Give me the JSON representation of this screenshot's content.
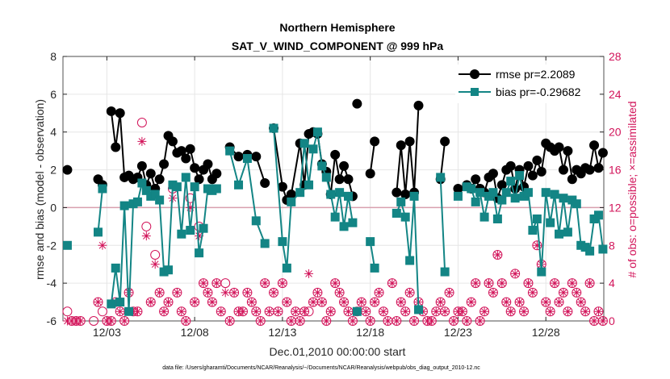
{
  "chart_data": {
    "type": "line",
    "title": "Northern Hemisphere",
    "subtitle": "SAT_V_WIND_COMPONENT @ 999 hPa",
    "xlabel": "Dec.01,2010 00:00:00 start",
    "ylabel": "rmse and bias (model - observation)",
    "y2label": "# of obs: o=possible; ×=assimilated",
    "footer": "data file: /Users/gharamti/Documents/NCAR/Reanalysis/~/Documents/NCAR/Reanalysis/webpub/obs_diag_output_2010-12.nc",
    "xlim": [
      0.5,
      31.3
    ],
    "ylim": [
      -6,
      8
    ],
    "y2lim": [
      0,
      28
    ],
    "xticks": [
      3,
      8,
      13,
      18,
      23,
      28
    ],
    "xtick_labels": [
      "12/03",
      "12/08",
      "12/13",
      "12/18",
      "12/23",
      "12/28"
    ],
    "yticks": [
      -6,
      -4,
      -2,
      0,
      2,
      4,
      6,
      8
    ],
    "y2ticks": [
      0,
      4,
      8,
      12,
      16,
      20,
      24,
      28
    ],
    "grid": true,
    "legend_position": "top-right",
    "colors": {
      "rmse": "#000000",
      "bias": "#138585",
      "obs": "#d2145a",
      "zero_line": "#d9a0ae"
    },
    "series": [
      {
        "name": "rmse pr=2.2089",
        "marker": "circle",
        "segments": [
          {
            "x": [
              0.75
            ],
            "y": [
              2.0
            ]
          },
          {
            "x": [
              2.5,
              2.75
            ],
            "y": [
              1.5,
              1.2
            ]
          },
          {
            "x": [
              3.25,
              3.5,
              3.75,
              4.0,
              4.25,
              4.5,
              4.75,
              5.0,
              5.25,
              5.5,
              5.75,
              6.0,
              6.25,
              6.5,
              6.75,
              7.0,
              7.25,
              7.5,
              7.75,
              8.0,
              8.25,
              8.5,
              8.75,
              9.0,
              9.25
            ],
            "y": [
              5.1,
              3.2,
              5.0,
              1.6,
              1.7,
              1.5,
              1.6,
              2.2,
              1.2,
              1.8,
              1.0,
              1.5,
              2.3,
              3.8,
              3.5,
              2.9,
              3.0,
              2.6,
              3.1,
              2.1,
              1.5,
              2.0,
              2.3,
              1.5,
              1.8
            ]
          },
          {
            "x": [
              10.0,
              10.5,
              11.0,
              11.5,
              12.0
            ],
            "y": [
              3.2,
              2.7,
              2.8,
              2.7,
              1.3
            ]
          },
          {
            "x": [
              12.5,
              13.0,
              13.25,
              13.5,
              14.0,
              14.25,
              14.5,
              14.75,
              15.0,
              15.25,
              15.5,
              15.75,
              16.0,
              16.25,
              16.5,
              16.75,
              17.0
            ],
            "y": [
              4.2,
              1.1,
              0.4,
              0.7,
              3.4,
              1.2,
              3.9,
              4.0,
              3.9,
              2.3,
              1.9,
              0.7,
              2.8,
              1.5,
              2.2,
              1.5,
              0.6
            ]
          },
          {
            "x": [
              17.25
            ],
            "y": [
              5.5
            ]
          },
          {
            "x": [
              18.0,
              18.25
            ],
            "y": [
              1.8,
              3.5
            ]
          },
          {
            "x": [
              19.5,
              19.75,
              20.0,
              20.25,
              20.5,
              20.75
            ],
            "y": [
              0.8,
              3.3,
              0.7,
              3.5,
              0.8,
              5.4
            ]
          },
          {
            "x": [
              22.0,
              22.25
            ],
            "y": [
              1.5,
              3.5
            ]
          },
          {
            "x": [
              23.0
            ],
            "y": [
              1.0
            ]
          },
          {
            "x": [
              23.5,
              23.75,
              24.0,
              24.25,
              24.5,
              24.75,
              25.0,
              25.25,
              25.5,
              25.75,
              26.0,
              26.25,
              26.5,
              26.75,
              27.0,
              27.25,
              27.5,
              27.75,
              28.0,
              28.25,
              28.5,
              28.75,
              29.0,
              29.25,
              29.5,
              29.75,
              30.0,
              30.25,
              30.5,
              30.75,
              31.0,
              31.25
            ],
            "y": [
              1.2,
              1.0,
              1.5,
              1.0,
              0.8,
              1.6,
              1.8,
              0.5,
              1.2,
              2.0,
              2.2,
              1.0,
              2.0,
              1.1,
              2.2,
              1.7,
              2.5,
              1.9,
              3.4,
              3.2,
              3.0,
              3.2,
              2.0,
              3.0,
              1.5,
              2.0,
              1.8,
              2.1,
              2.0,
              3.3,
              2.1,
              2.9
            ]
          }
        ]
      },
      {
        "name": "bias pr=-0.29682",
        "marker": "square",
        "segments": [
          {
            "x": [
              0.75
            ],
            "y": [
              -2.0
            ]
          },
          {
            "x": [
              2.5,
              2.75
            ],
            "y": [
              -1.3,
              1.0
            ]
          },
          {
            "x": [
              3.25,
              3.5,
              3.75,
              4.0,
              4.25,
              4.5,
              4.75,
              5.0,
              5.25,
              5.5,
              5.75,
              6.0,
              6.25,
              6.5,
              6.75,
              7.0,
              7.25,
              7.5,
              7.75,
              8.0,
              8.25,
              8.5,
              8.75,
              9.0,
              9.25
            ],
            "y": [
              -5.1,
              -3.2,
              -5.0,
              0.1,
              -5.5,
              0.2,
              0.3,
              1.3,
              0.9,
              0.6,
              0.7,
              0.4,
              -3.4,
              -3.3,
              1.2,
              1.1,
              -1.4,
              1.6,
              -1.2,
              1.1,
              -2.4,
              -1.1,
              1.0,
              0.9,
              1.0
            ]
          },
          {
            "x": [
              10.0,
              10.5,
              11.0,
              11.5,
              12.0
            ],
            "y": [
              3.0,
              1.2,
              2.6,
              -0.7,
              -1.9
            ]
          },
          {
            "x": [
              12.5,
              13.0,
              13.25,
              13.5,
              14.0,
              14.25,
              14.5,
              14.75,
              15.0,
              15.25,
              15.5,
              15.75,
              16.0,
              16.25,
              16.5,
              16.75,
              17.0
            ],
            "y": [
              4.2,
              -1.8,
              -3.2,
              0.3,
              0.8,
              3.4,
              1.2,
              3.1,
              4.0,
              2.2,
              1.6,
              0.7,
              -0.5,
              0.8,
              -1.0,
              0.6,
              -0.8
            ]
          },
          {
            "x": [
              17.25
            ],
            "y": [
              -5.5
            ]
          },
          {
            "x": [
              18.0,
              18.25
            ],
            "y": [
              -1.8,
              -3.2
            ]
          },
          {
            "x": [
              19.5,
              19.75,
              20.0,
              20.25,
              20.5,
              20.75
            ],
            "y": [
              -0.3,
              0.3,
              -0.5,
              -2.8,
              0.6,
              -5.4
            ]
          },
          {
            "x": [
              22.0,
              22.25
            ],
            "y": [
              1.6,
              -3.4
            ]
          },
          {
            "x": [
              23.0
            ],
            "y": [
              0.6
            ]
          },
          {
            "x": [
              23.5,
              23.75,
              24.0,
              24.25,
              24.5,
              24.75,
              25.0,
              25.25,
              25.5,
              25.75,
              26.0,
              26.25,
              26.5,
              26.75,
              27.0,
              27.25,
              27.5,
              27.75,
              28.0,
              28.25,
              28.5,
              28.75,
              29.0,
              29.25,
              29.5,
              29.75,
              30.0,
              30.25,
              30.5,
              30.75,
              31.0,
              31.25
            ],
            "y": [
              1.1,
              1.0,
              0.3,
              0.8,
              -0.5,
              0.6,
              0.8,
              -0.6,
              0.4,
              0.8,
              1.4,
              0.5,
              1.7,
              0.6,
              0.8,
              -1.2,
              -0.6,
              -3.4,
              0.8,
              -0.8,
              0.7,
              -1.4,
              0.5,
              -1.3,
              0.4,
              0.2,
              -2.0,
              -2.1,
              -2.3,
              -0.6,
              -0.4,
              -2.2
            ]
          }
        ]
      },
      {
        "name": "possible",
        "marker": "circle-open",
        "axis": "right",
        "x": [
          0.75,
          1.0,
          1.25,
          1.5,
          2.25,
          2.5,
          2.75,
          3.0,
          3.25,
          3.5,
          3.75,
          4.0,
          4.25,
          4.5,
          4.75,
          5.0,
          5.25,
          5.5,
          5.75,
          6.0,
          6.25,
          6.5,
          6.75,
          7.0,
          7.25,
          7.5,
          7.75,
          8.0,
          8.25,
          8.5,
          8.75,
          9.0,
          9.25,
          9.5,
          9.75,
          10.0,
          10.25,
          10.5,
          10.75,
          11.0,
          11.25,
          11.5,
          11.75,
          12.0,
          12.25,
          12.5,
          12.75,
          13.0,
          13.25,
          13.5,
          13.75,
          14.0,
          14.25,
          14.5,
          14.75,
          15.0,
          15.25,
          15.5,
          15.75,
          16.0,
          16.25,
          16.5,
          16.75,
          17.0,
          17.25,
          17.5,
          17.75,
          18.0,
          18.25,
          18.5,
          18.75,
          19.0,
          19.25,
          19.5,
          19.75,
          20.0,
          20.25,
          20.5,
          20.75,
          21.0,
          21.25,
          21.5,
          21.75,
          22.0,
          22.25,
          22.5,
          22.75,
          23.0,
          23.25,
          23.5,
          23.75,
          24.0,
          24.25,
          24.5,
          24.75,
          25.0,
          25.25,
          25.5,
          25.75,
          26.0,
          26.25,
          26.5,
          26.75,
          27.0,
          27.25,
          27.5,
          27.75,
          28.0,
          28.25,
          28.5,
          28.75,
          29.0,
          29.25,
          29.5,
          29.75,
          30.0,
          30.25,
          30.5,
          30.75,
          31.0,
          31.25
        ],
        "y": [
          1,
          0,
          0,
          0,
          0,
          2,
          1,
          0,
          0,
          2,
          1,
          0,
          3,
          1,
          1,
          21,
          10,
          2,
          7,
          3,
          1,
          2,
          14,
          3,
          1,
          0,
          13,
          2,
          10,
          4,
          3,
          2,
          4,
          1,
          4,
          0,
          3,
          1,
          1,
          3,
          2,
          1,
          0,
          4,
          1,
          3,
          1,
          4,
          2,
          0,
          1,
          0,
          1,
          1,
          2,
          3,
          2,
          0,
          1,
          4,
          3,
          2,
          1,
          0,
          1,
          2,
          1,
          0,
          2,
          3,
          1,
          0,
          4,
          0,
          2,
          1,
          3,
          0,
          2,
          1,
          0,
          0,
          1,
          2,
          1,
          3,
          0,
          1,
          1,
          0,
          2,
          4,
          0,
          1,
          4,
          3,
          7,
          4,
          2,
          1,
          5,
          2,
          1,
          4,
          3,
          8,
          6,
          2,
          1,
          4,
          2,
          3,
          1,
          4,
          3,
          2,
          1,
          4,
          0,
          1,
          0
        ]
      },
      {
        "name": "assimilated",
        "marker": "star",
        "axis": "right",
        "x": [
          0.75,
          1.0,
          1.25,
          1.5,
          2.5,
          2.75,
          3.0,
          3.25,
          3.5,
          3.75,
          4.0,
          4.25,
          4.5,
          4.75,
          5.0,
          5.25,
          5.5,
          5.75,
          6.0,
          6.25,
          6.5,
          6.75,
          7.0,
          7.25,
          7.5,
          7.75,
          8.0,
          8.25,
          8.5,
          8.75,
          9.0,
          9.25,
          9.5,
          9.75,
          10.0,
          10.25,
          10.5,
          10.75,
          11.0,
          11.25,
          11.5,
          11.75,
          12.0,
          12.25,
          12.5,
          12.75,
          13.0,
          13.25,
          13.5,
          13.75,
          14.0,
          14.25,
          14.5,
          14.75,
          15.0,
          15.25,
          15.5,
          15.75,
          16.0,
          16.25,
          16.5,
          16.75,
          17.0,
          17.25,
          17.5,
          17.75,
          18.0,
          18.25,
          18.5,
          18.75,
          19.0,
          19.25,
          19.5,
          19.75,
          20.0,
          20.25,
          20.5,
          20.75,
          21.0,
          21.25,
          21.5,
          21.75,
          22.0,
          22.25,
          22.5,
          22.75,
          23.0,
          23.25,
          23.5,
          23.75,
          24.0,
          24.25,
          24.5,
          24.75,
          25.0,
          25.25,
          25.5,
          25.75,
          26.0,
          26.25,
          26.5,
          26.75,
          27.0,
          27.25,
          27.5,
          27.75,
          28.0,
          28.25,
          28.5,
          28.75,
          29.0,
          29.25,
          29.5,
          29.75,
          30.0,
          30.25,
          30.5,
          30.75,
          31.0,
          31.25
        ],
        "y": [
          0,
          0,
          0,
          0,
          2,
          8,
          0,
          0,
          2,
          1,
          0,
          3,
          1,
          1,
          19,
          9,
          2,
          6,
          3,
          1,
          2,
          13,
          3,
          1,
          0,
          12,
          2,
          9,
          4,
          3,
          2,
          4,
          1,
          3,
          0,
          3,
          1,
          1,
          3,
          2,
          1,
          0,
          4,
          1,
          3,
          1,
          4,
          2,
          0,
          1,
          0,
          1,
          5,
          2,
          3,
          2,
          0,
          1,
          4,
          3,
          2,
          1,
          0,
          1,
          2,
          1,
          0,
          2,
          3,
          1,
          0,
          4,
          0,
          2,
          1,
          3,
          0,
          2,
          1,
          0,
          0,
          1,
          2,
          1,
          3,
          0,
          1,
          1,
          0,
          2,
          4,
          0,
          1,
          4,
          3,
          7,
          4,
          2,
          1,
          5,
          2,
          1,
          4,
          3,
          8,
          6,
          2,
          1,
          4,
          2,
          3,
          1,
          4,
          3,
          2,
          1,
          4,
          0,
          1,
          0
        ]
      }
    ]
  }
}
